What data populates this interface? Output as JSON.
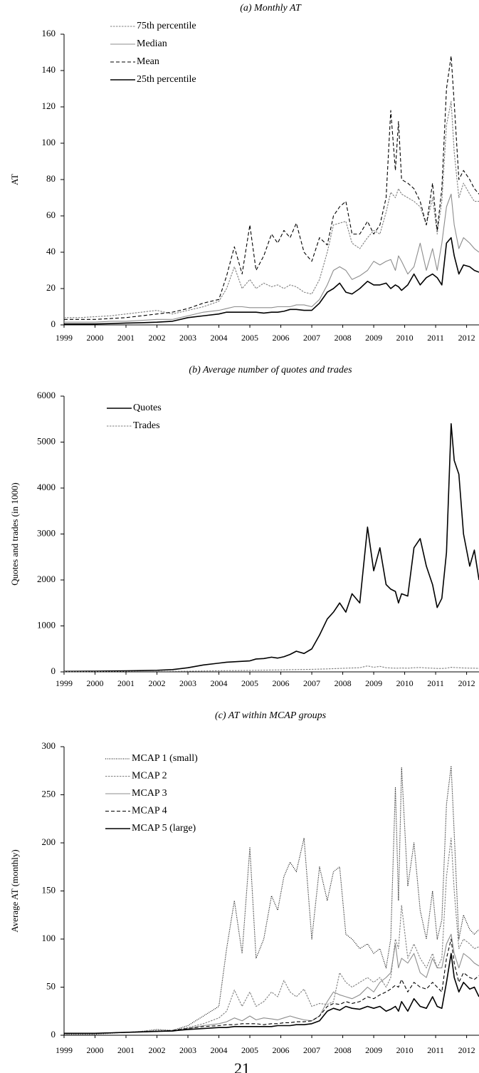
{
  "chart_data": [
    {
      "type": "line",
      "title": "(a) Monthly AT",
      "y_label": "AT",
      "x": [
        1999,
        1999.5,
        2000,
        2000.5,
        2001,
        2001.5,
        2002,
        2002.5,
        2003,
        2003.5,
        2004,
        2004.25,
        2004.5,
        2004.75,
        2005,
        2005.2,
        2005.45,
        2005.7,
        2005.9,
        2006.1,
        2006.3,
        2006.5,
        2006.75,
        2007,
        2007.25,
        2007.5,
        2007.7,
        2007.9,
        2008.1,
        2008.3,
        2008.55,
        2008.8,
        2009,
        2009.2,
        2009.4,
        2009.55,
        2009.7,
        2009.8,
        2009.9,
        2010.1,
        2010.3,
        2010.5,
        2010.7,
        2010.9,
        2011.05,
        2011.2,
        2011.35,
        2011.5,
        2011.6,
        2011.75,
        2011.9,
        2012.1,
        2012.25,
        2012.4
      ],
      "xlim": [
        1999,
        2012.4
      ],
      "xticks": [
        1999,
        2000,
        2001,
        2002,
        2003,
        2004,
        2005,
        2006,
        2007,
        2008,
        2009,
        2010,
        2011,
        2012
      ],
      "ylim": [
        0,
        160
      ],
      "yticks": [
        0,
        20,
        40,
        60,
        80,
        100,
        120,
        140,
        160
      ],
      "series": [
        {
          "name": "75th percentile",
          "color": "#7f7f7f",
          "style": "short-dashed",
          "values": [
            4,
            4,
            4.5,
            5,
            6,
            7,
            8,
            6,
            8,
            10,
            13,
            20,
            32,
            20,
            25,
            20,
            23,
            21,
            22,
            20,
            22,
            21,
            18,
            17,
            25,
            40,
            55,
            56,
            57,
            45,
            42,
            48,
            52,
            50,
            62,
            73,
            70,
            75,
            72,
            70,
            68,
            65,
            55,
            70,
            50,
            68,
            110,
            123,
            95,
            70,
            78,
            72,
            68,
            68
          ]
        },
        {
          "name": "Median",
          "color": "#8c8c8c",
          "style": "solid",
          "values": [
            1.5,
            1.5,
            1.5,
            2,
            2,
            2.5,
            3,
            3,
            5,
            7,
            8,
            9,
            10,
            10,
            9.5,
            9.5,
            9.5,
            9.5,
            10,
            10,
            10,
            11,
            11,
            10,
            14,
            22,
            30,
            32,
            30,
            25,
            27,
            30,
            35,
            33,
            35,
            36,
            30,
            38,
            35,
            28,
            32,
            45,
            30,
            42,
            30,
            45,
            65,
            72,
            55,
            42,
            48,
            45,
            42,
            40
          ]
        },
        {
          "name": "Mean",
          "color": "#000000",
          "style": "dashed",
          "values": [
            3,
            3,
            3,
            3.5,
            4,
            5,
            6,
            7,
            9,
            12,
            14,
            27,
            43,
            28,
            55,
            30,
            38,
            50,
            45,
            52,
            48,
            56,
            40,
            35,
            48,
            44,
            60,
            65,
            68,
            50,
            50,
            57,
            50,
            55,
            70,
            118,
            85,
            112,
            80,
            78,
            75,
            68,
            55,
            78,
            52,
            75,
            130,
            148,
            122,
            80,
            85,
            80,
            75,
            72
          ]
        },
        {
          "name": "25th percentile",
          "color": "#000000",
          "style": "solid",
          "values": [
            0.5,
            0.5,
            0.5,
            0.7,
            1,
            1.2,
            1.5,
            2,
            4,
            5,
            6,
            7,
            7,
            7,
            7,
            7,
            6.5,
            7,
            7,
            7.5,
            8.5,
            8.5,
            8,
            8,
            12,
            18,
            20,
            23,
            18,
            17,
            20,
            24,
            22,
            22,
            23,
            20,
            22,
            21,
            19,
            22,
            28,
            22,
            26,
            28,
            26,
            22,
            45,
            48,
            38,
            28,
            33,
            32,
            30,
            29
          ]
        }
      ]
    },
    {
      "type": "line",
      "title": "(b) Average number of quotes and trades",
      "y_label": "Quotes and trades (in 1000)",
      "x": [
        1999,
        1999.5,
        2000,
        2000.5,
        2001,
        2001.5,
        2002,
        2002.5,
        2003,
        2003.5,
        2004,
        2004.25,
        2004.5,
        2004.75,
        2005,
        2005.2,
        2005.45,
        2005.7,
        2005.9,
        2006.1,
        2006.3,
        2006.5,
        2006.75,
        2007,
        2007.25,
        2007.5,
        2007.7,
        2007.9,
        2008.1,
        2008.3,
        2008.55,
        2008.8,
        2009,
        2009.2,
        2009.4,
        2009.55,
        2009.7,
        2009.8,
        2009.9,
        2010.1,
        2010.3,
        2010.5,
        2010.7,
        2010.9,
        2011.05,
        2011.2,
        2011.35,
        2011.5,
        2011.6,
        2011.75,
        2011.9,
        2012.1,
        2012.25,
        2012.4
      ],
      "xlim": [
        1999,
        2012.4
      ],
      "xticks": [
        1999,
        2000,
        2001,
        2002,
        2003,
        2004,
        2005,
        2006,
        2007,
        2008,
        2009,
        2010,
        2011,
        2012
      ],
      "ylim": [
        0,
        6000
      ],
      "yticks": [
        0,
        1000,
        2000,
        3000,
        4000,
        5000,
        6000
      ],
      "series": [
        {
          "name": "Quotes",
          "color": "#000000",
          "style": "solid",
          "values": [
            10,
            12,
            15,
            18,
            22,
            28,
            35,
            50,
            90,
            150,
            190,
            210,
            220,
            230,
            240,
            280,
            290,
            320,
            300,
            330,
            380,
            450,
            400,
            500,
            800,
            1150,
            1300,
            1500,
            1300,
            1700,
            1500,
            3150,
            2200,
            2700,
            1900,
            1800,
            1750,
            1500,
            1700,
            1650,
            2700,
            2900,
            2300,
            1900,
            1400,
            1600,
            2600,
            5400,
            4600,
            4300,
            3000,
            2300,
            2650,
            2000
          ]
        },
        {
          "name": "Trades",
          "color": "#7f7f7f",
          "style": "short-dashed",
          "values": [
            5,
            5,
            6,
            7,
            8,
            9,
            10,
            12,
            15,
            20,
            25,
            27,
            28,
            30,
            32,
            35,
            37,
            40,
            42,
            45,
            48,
            50,
            52,
            55,
            60,
            65,
            70,
            75,
            80,
            85,
            90,
            130,
            100,
            120,
            90,
            85,
            80,
            80,
            85,
            80,
            90,
            95,
            85,
            80,
            75,
            75,
            80,
            100,
            95,
            90,
            85,
            80,
            80,
            75
          ]
        }
      ]
    },
    {
      "type": "line",
      "title": "(c) AT within MCAP groups",
      "y_label": "Average AT  (monthly)",
      "x": [
        1999,
        1999.5,
        2000,
        2000.5,
        2001,
        2001.5,
        2002,
        2002.5,
        2003,
        2003.5,
        2004,
        2004.25,
        2004.5,
        2004.75,
        2005,
        2005.2,
        2005.45,
        2005.7,
        2005.9,
        2006.1,
        2006.3,
        2006.5,
        2006.75,
        2007,
        2007.25,
        2007.5,
        2007.7,
        2007.9,
        2008.1,
        2008.3,
        2008.55,
        2008.8,
        2009,
        2009.2,
        2009.4,
        2009.55,
        2009.7,
        2009.8,
        2009.9,
        2010.1,
        2010.3,
        2010.5,
        2010.7,
        2010.9,
        2011.05,
        2011.2,
        2011.35,
        2011.5,
        2011.6,
        2011.75,
        2011.9,
        2012.1,
        2012.25,
        2012.4
      ],
      "xlim": [
        1999,
        2012.4
      ],
      "xticks": [
        1999,
        2000,
        2001,
        2002,
        2003,
        2004,
        2005,
        2006,
        2007,
        2008,
        2009,
        2010,
        2011,
        2012
      ],
      "ylim": [
        0,
        300
      ],
      "yticks": [
        0,
        50,
        100,
        150,
        200,
        250,
        300
      ],
      "series": [
        {
          "name": "MCAP 1 (small)",
          "color": "#000000",
          "style": "dotted",
          "values": [
            1,
            1,
            1,
            2,
            3,
            4,
            6,
            5,
            10,
            20,
            30,
            90,
            140,
            85,
            195,
            80,
            100,
            145,
            130,
            165,
            180,
            170,
            205,
            100,
            175,
            140,
            170,
            175,
            105,
            100,
            90,
            95,
            85,
            90,
            70,
            100,
            258,
            140,
            278,
            155,
            200,
            130,
            100,
            150,
            100,
            120,
            240,
            280,
            210,
            100,
            125,
            110,
            105,
            110
          ]
        },
        {
          "name": "MCAP 2",
          "color": "#7f7f7f",
          "style": "short-dashed",
          "values": [
            2,
            2,
            2,
            2.5,
            3,
            4,
            5,
            5,
            8,
            12,
            18,
            25,
            47,
            30,
            45,
            30,
            35,
            45,
            40,
            57,
            45,
            40,
            48,
            30,
            33,
            32,
            35,
            65,
            55,
            50,
            55,
            60,
            55,
            60,
            50,
            60,
            100,
            90,
            135,
            80,
            95,
            80,
            70,
            85,
            70,
            80,
            165,
            205,
            150,
            90,
            100,
            95,
            90,
            92
          ]
        },
        {
          "name": "MCAP 3",
          "color": "#8c8c8c",
          "style": "solid",
          "values": [
            2,
            2,
            2,
            2.5,
            3,
            3.5,
            4,
            4,
            7,
            10,
            12,
            14,
            18,
            15,
            20,
            16,
            18,
            17,
            16,
            18,
            20,
            18,
            16,
            15,
            20,
            35,
            45,
            42,
            40,
            38,
            42,
            50,
            45,
            55,
            60,
            65,
            95,
            70,
            80,
            75,
            85,
            65,
            60,
            80,
            70,
            70,
            95,
            105,
            85,
            70,
            85,
            80,
            75,
            72
          ]
        },
        {
          "name": "MCAP 4",
          "color": "#000000",
          "style": "dashed",
          "values": [
            2,
            2,
            2,
            2.5,
            3,
            3.5,
            4,
            5,
            7,
            9,
            10,
            11,
            11,
            12,
            12,
            12,
            11,
            12,
            12,
            13,
            13,
            14,
            14,
            15,
            20,
            30,
            33,
            32,
            35,
            33,
            35,
            40,
            38,
            42,
            45,
            48,
            52,
            50,
            58,
            45,
            55,
            50,
            48,
            55,
            50,
            45,
            80,
            100,
            75,
            55,
            65,
            60,
            58,
            62
          ]
        },
        {
          "name": "MCAP 5 (large)",
          "color": "#000000",
          "style": "solid",
          "values": [
            2,
            2,
            2,
            2.5,
            3,
            3.5,
            4,
            4.5,
            6,
            7,
            8,
            8,
            9,
            9,
            9,
            9,
            9,
            9,
            10,
            10,
            10,
            11,
            11,
            12,
            15,
            25,
            28,
            26,
            30,
            28,
            27,
            30,
            28,
            30,
            25,
            27,
            30,
            25,
            35,
            25,
            38,
            30,
            28,
            40,
            30,
            28,
            55,
            85,
            60,
            45,
            55,
            48,
            50,
            40
          ]
        }
      ]
    }
  ],
  "page_number": "21"
}
